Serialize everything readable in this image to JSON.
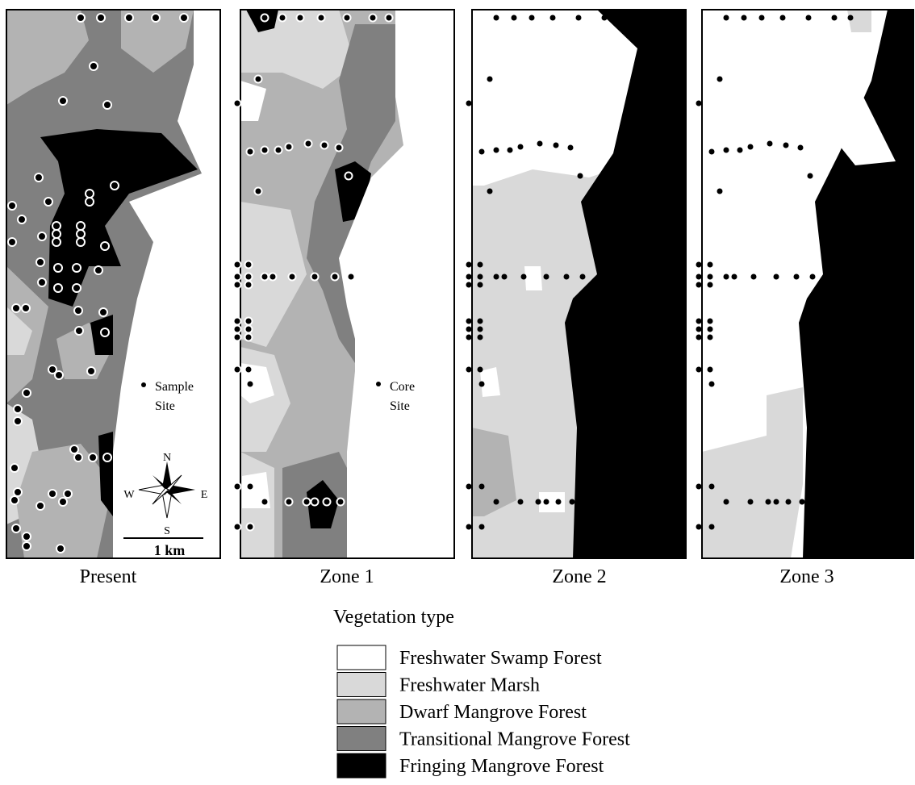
{
  "panels": [
    {
      "label": "Present",
      "site": [
        "Sample",
        "Site"
      ]
    },
    {
      "label": "Zone 1",
      "site": [
        "Core",
        "Site"
      ]
    },
    {
      "label": "Zone 2"
    },
    {
      "label": "Zone 3"
    }
  ],
  "compass": {
    "n": "N",
    "s": "S",
    "e": "E",
    "w": "W"
  },
  "scale_bar": "1 km",
  "legend": {
    "title": "Vegetation type",
    "items": [
      {
        "name": "Freshwater Swamp Forest",
        "color": "#ffffff"
      },
      {
        "name": "Freshwater Marsh",
        "color": "#d9d9d9"
      },
      {
        "name": "Dwarf Mangrove Forest",
        "color": "#b3b3b3"
      },
      {
        "name": "Transitional Mangrove Forest",
        "color": "#808080"
      },
      {
        "name": "Fringing Mangrove Forest",
        "color": "#000000"
      }
    ]
  }
}
